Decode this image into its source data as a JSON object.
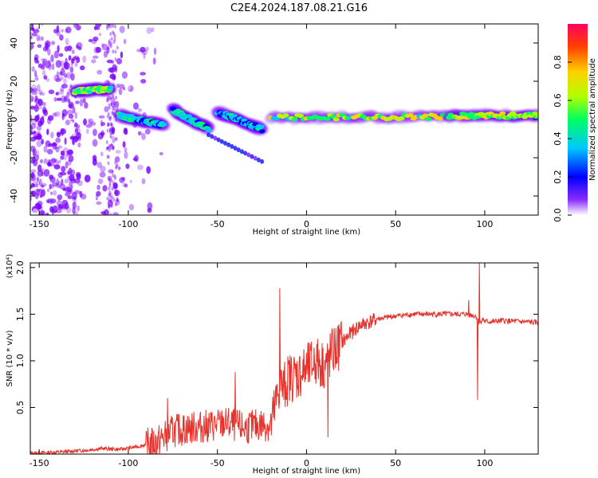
{
  "title": "C2E4.2024.187.08.21.G16",
  "chart_data": [
    {
      "type": "heatmap",
      "xlabel": "Height of straight line (km)",
      "ylabel": "Frequency (Hz)",
      "xlim": [
        -155,
        130
      ],
      "ylim": [
        -50,
        50
      ],
      "xticks": [
        -150,
        -100,
        -50,
        0,
        50,
        100
      ],
      "yticks": [
        -40,
        -20,
        0,
        20,
        40
      ],
      "colorbar": {
        "label": "Normalized spectral amplitude",
        "range": [
          0.0,
          1.0
        ],
        "ticks": [
          0.0,
          0.2,
          0.4,
          0.6,
          0.8
        ],
        "tick_labels": [
          "0.0",
          "0.2",
          "0.4",
          "0.6",
          "0.8"
        ],
        "colors": [
          "#ffffff",
          "#7a00ff",
          "#0000ff",
          "#00c8ff",
          "#00ff60",
          "#b0ff00",
          "#ffd000",
          "#ff4000",
          "#ff0060"
        ]
      },
      "ridges": [
        {
          "x": [
            -130,
            -110
          ],
          "y": [
            15,
            16
          ],
          "amp": 0.7
        },
        {
          "x": [
            -105,
            -80
          ],
          "y": [
            2,
            -3
          ],
          "amp": 0.5
        },
        {
          "x": [
            -75,
            -55
          ],
          "y": [
            5,
            -5
          ],
          "amp": 0.5
        },
        {
          "x": [
            -50,
            -25
          ],
          "y": [
            4,
            -5
          ],
          "amp": 0.45
        },
        {
          "x": [
            -20,
            80
          ],
          "y": [
            1,
            1.5
          ],
          "amp": 0.75
        },
        {
          "x": [
            80,
            130
          ],
          "y": [
            2,
            2
          ],
          "amp": 0.8
        }
      ],
      "trails": [
        {
          "x": [
            -55,
            -25
          ],
          "y": [
            -8,
            -22
          ],
          "amp": 0.3
        }
      ]
    },
    {
      "type": "line",
      "xlabel": "Height of straight line (km)",
      "ylabel": "SNR (10 * v/v)",
      "y_multiplier": "(x10⁴)",
      "xlim": [
        -155,
        130
      ],
      "ylim": [
        0,
        2.05
      ],
      "xticks": [
        -150,
        -100,
        -50,
        0,
        50,
        100
      ],
      "yticks": [
        0.5,
        1.0,
        1.5,
        2.0
      ],
      "ytick_labels": [
        "0.5",
        "1.0",
        "1.5",
        "2.0"
      ],
      "color": "#e8312a",
      "x": [
        -155,
        -140,
        -125,
        -115,
        -105,
        -95,
        -85,
        -80,
        -75,
        -65,
        -55,
        -45,
        -35,
        -25,
        -20,
        -17,
        -15,
        -13,
        -10,
        -5,
        0,
        5,
        10,
        15,
        20,
        25,
        30,
        40,
        50,
        60,
        70,
        80,
        90,
        95,
        97,
        99,
        100,
        105,
        110,
        120,
        130
      ],
      "y": [
        0.01,
        0.02,
        0.04,
        0.06,
        0.05,
        0.08,
        0.12,
        0.18,
        0.25,
        0.28,
        0.3,
        0.33,
        0.28,
        0.32,
        0.3,
        0.55,
        0.75,
        0.7,
        0.82,
        0.85,
        0.9,
        1.0,
        0.95,
        1.1,
        1.2,
        1.3,
        1.38,
        1.45,
        1.48,
        1.5,
        1.5,
        1.5,
        1.5,
        1.48,
        1.4,
        1.45,
        1.42,
        1.42,
        1.43,
        1.42,
        1.41
      ],
      "spikes": [
        {
          "x": -15,
          "y": 1.78
        },
        {
          "x": -40,
          "y": 0.88
        },
        {
          "x": -78,
          "y": 0.6
        },
        {
          "x": 12,
          "y": 0.18
        },
        {
          "x": 97,
          "y": 2.05
        },
        {
          "x": 96,
          "y": 0.58
        },
        {
          "x": 91,
          "y": 1.65
        }
      ]
    }
  ]
}
